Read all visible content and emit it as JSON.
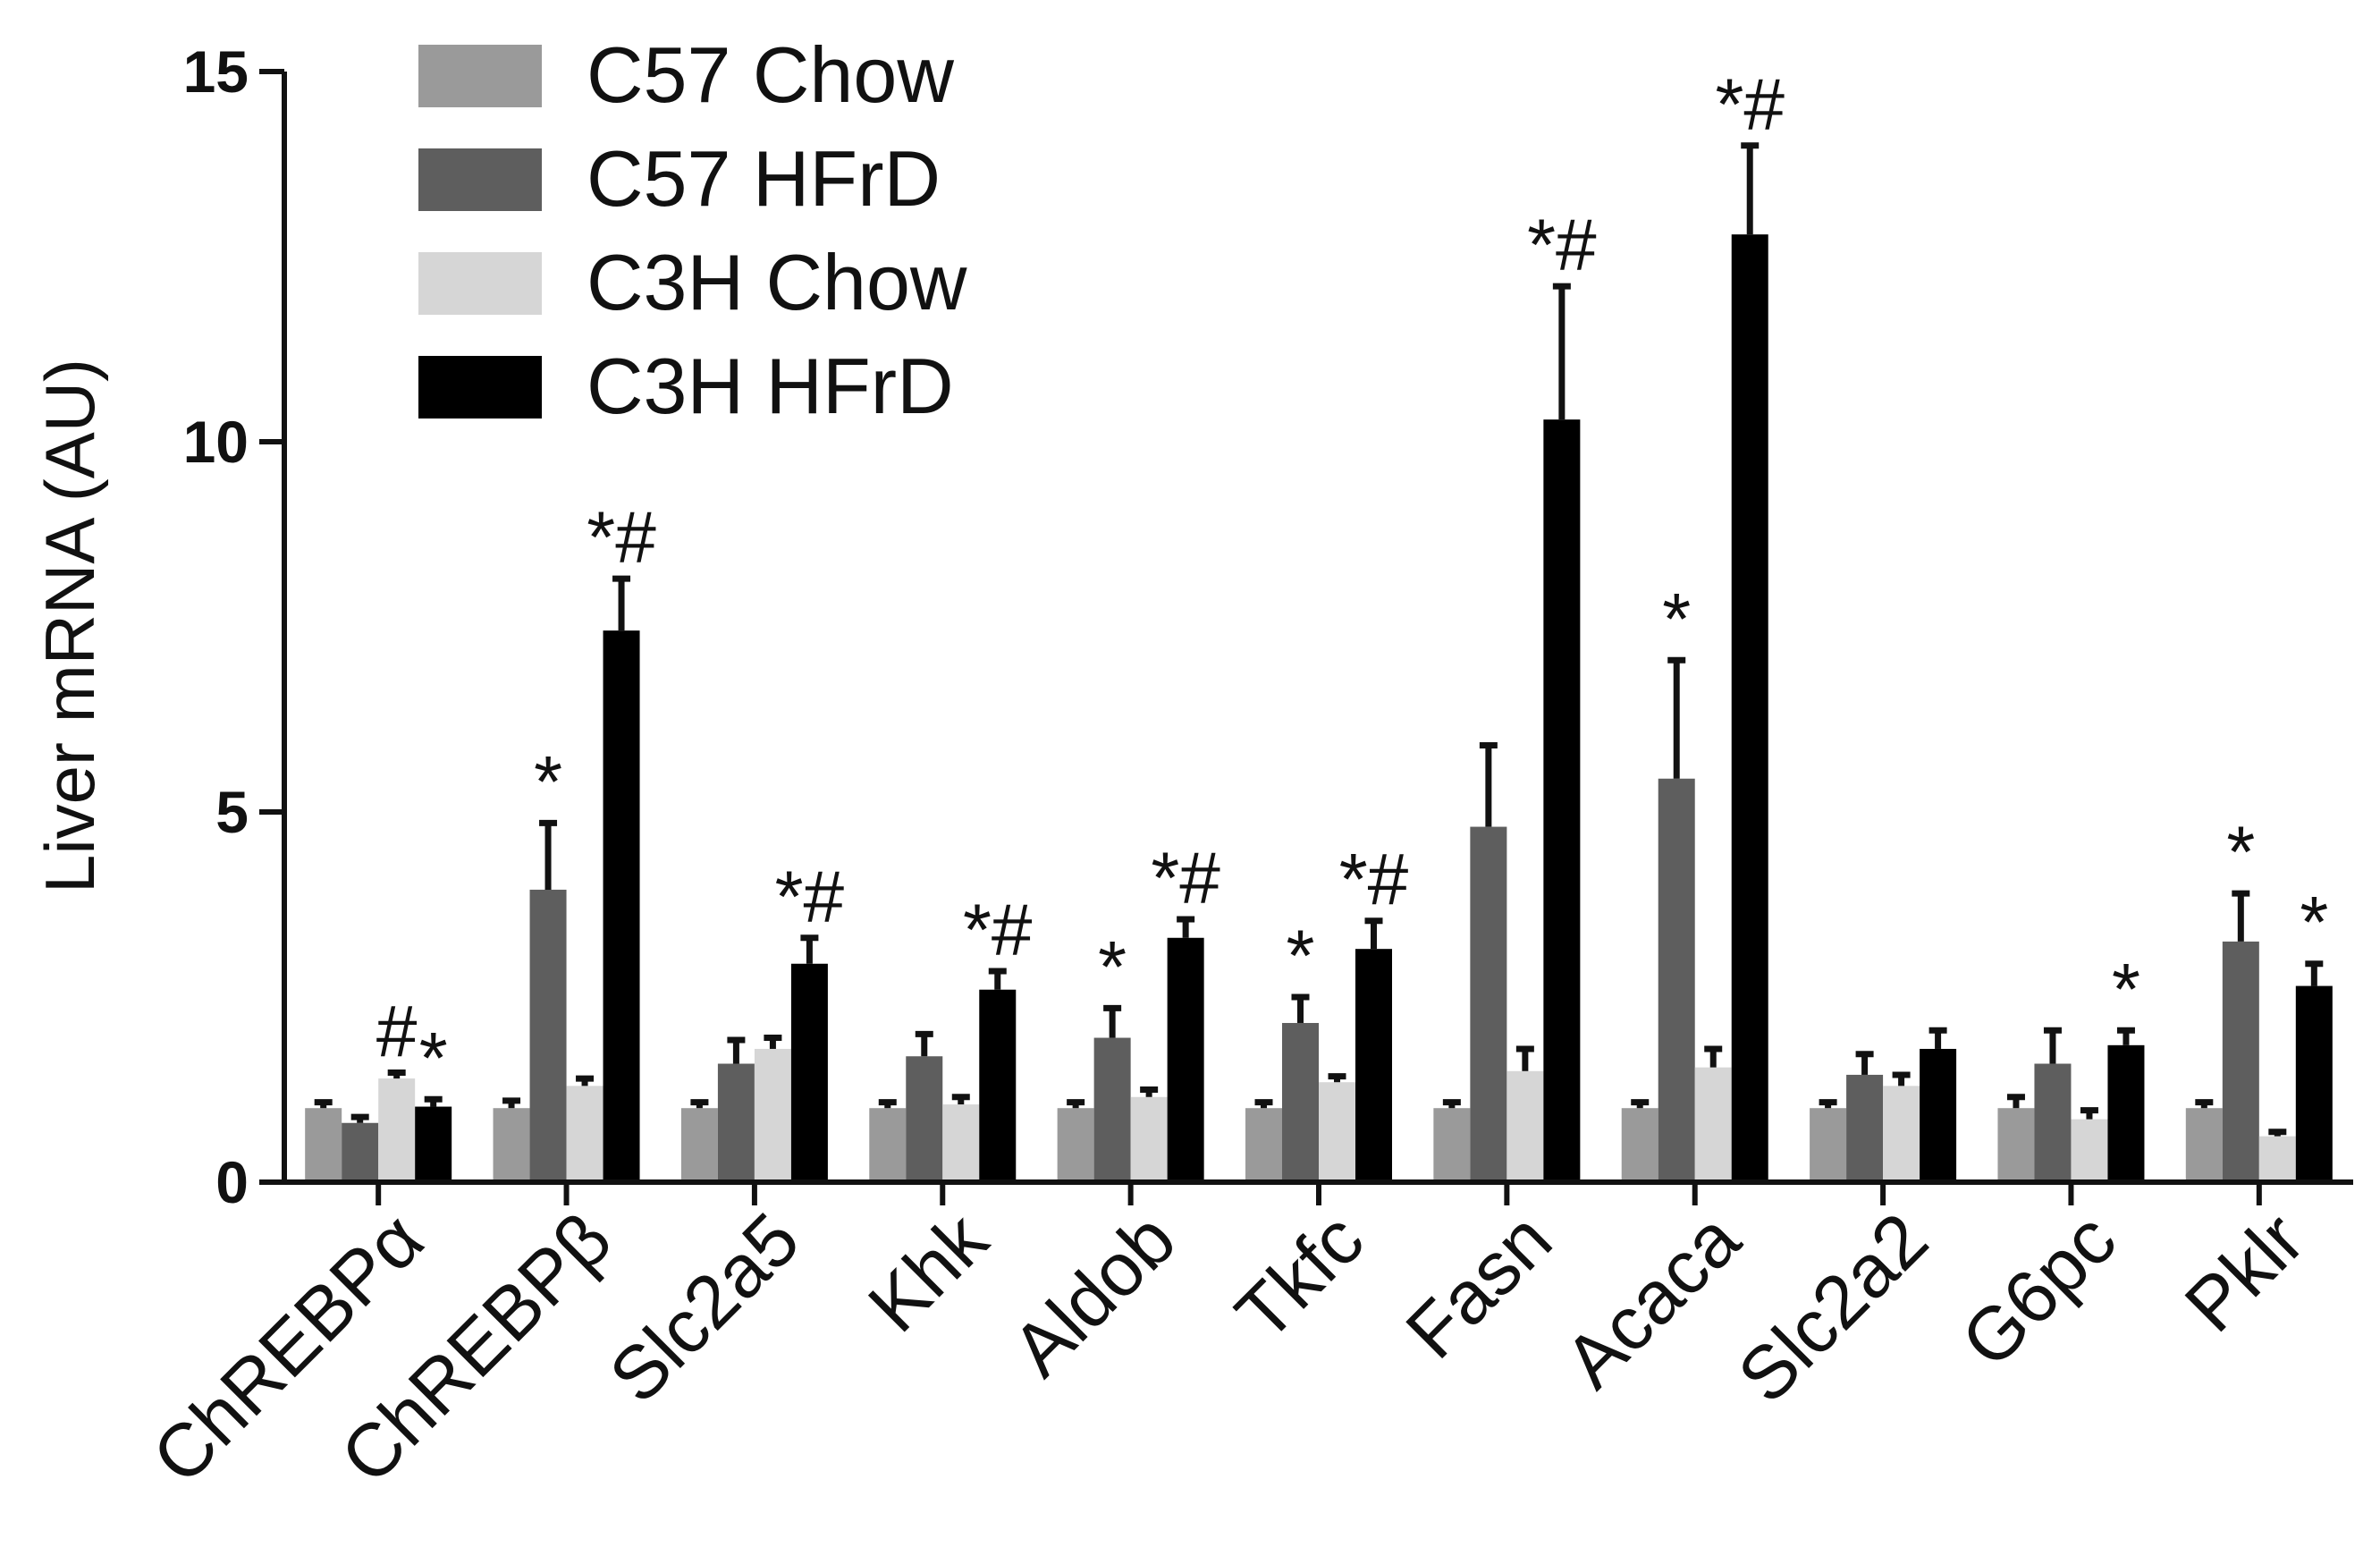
{
  "chart_data": {
    "type": "bar",
    "title": "",
    "xlabel": "",
    "ylabel": "Liver mRNA (AU)",
    "ylim": [
      0,
      15
    ],
    "yticks": [
      "0",
      "5",
      "10",
      "15"
    ],
    "ytick_values": [
      0,
      5,
      10,
      15
    ],
    "grid": false,
    "legend_position": "top-left",
    "categories": [
      "ChREBPα",
      "ChREBPβ",
      "Slc2a5",
      "Khk",
      "Aldob",
      "Tkfc",
      "Fasn",
      "Acaca",
      "Slc2a2",
      "G6pc",
      "Pklr"
    ],
    "series": [
      {
        "name": "C57 Chow",
        "color": "#9a9a9a",
        "values": [
          1.0,
          1.0,
          1.0,
          1.0,
          1.0,
          1.0,
          1.0,
          1.0,
          1.0,
          1.0,
          1.0
        ],
        "errors": [
          0.08,
          0.1,
          0.08,
          0.08,
          0.08,
          0.08,
          0.08,
          0.08,
          0.08,
          0.15,
          0.08
        ],
        "markers": [
          "",
          "",
          "",
          "",
          "",
          "",
          "",
          "",
          "",
          "",
          ""
        ]
      },
      {
        "name": "C57 HFrD",
        "color": "#5e5e5e",
        "values": [
          0.8,
          3.95,
          1.6,
          1.7,
          1.95,
          2.15,
          4.8,
          5.45,
          1.45,
          1.6,
          3.25
        ],
        "errors": [
          0.08,
          0.9,
          0.32,
          0.3,
          0.4,
          0.35,
          1.1,
          1.6,
          0.28,
          0.45,
          0.65
        ],
        "markers": [
          "",
          "*",
          "",
          "",
          "*",
          "*",
          "",
          "*",
          "",
          "",
          "*"
        ]
      },
      {
        "name": "C3H Chow",
        "color": "#d6d6d6",
        "values": [
          1.4,
          1.3,
          1.8,
          1.05,
          1.15,
          1.35,
          1.5,
          1.55,
          1.3,
          0.85,
          0.62
        ],
        "errors": [
          0.08,
          0.1,
          0.15,
          0.1,
          0.1,
          0.08,
          0.3,
          0.25,
          0.15,
          0.12,
          0.06
        ],
        "markers": [
          "#",
          "",
          "",
          "",
          "",
          "",
          "",
          "",
          "",
          "",
          ""
        ]
      },
      {
        "name": "C3H HFrD",
        "color": "#000000",
        "values": [
          1.02,
          7.45,
          2.95,
          2.6,
          3.3,
          3.15,
          10.3,
          12.8,
          1.8,
          1.85,
          2.65
        ],
        "errors": [
          0.1,
          0.7,
          0.35,
          0.25,
          0.25,
          0.38,
          1.8,
          1.2,
          0.25,
          0.2,
          0.3
        ],
        "markers": [
          "*",
          "*#",
          "*#",
          "*#",
          "*#",
          "*#",
          "*#",
          "*#",
          "",
          "*",
          "*"
        ]
      }
    ]
  }
}
